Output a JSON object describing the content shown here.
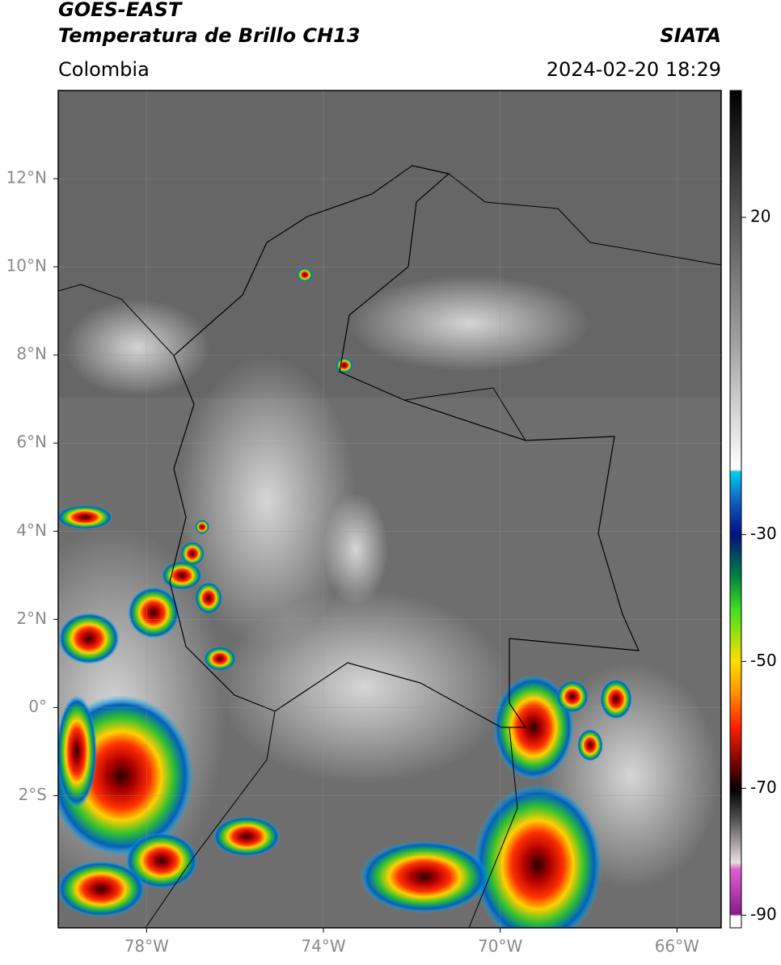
{
  "header": {
    "satellite": "GOES-EAST",
    "product": "Temperatura de Brillo CH13",
    "organization": "SIATA",
    "region": "Colombia",
    "datetime": "2024-02-20 18:29"
  },
  "map": {
    "xlim": [
      -80,
      -65
    ],
    "ylim": [
      -5,
      14
    ],
    "xticks": [
      {
        "value": -78,
        "label": "78°W"
      },
      {
        "value": -74,
        "label": "74°W"
      },
      {
        "value": -70,
        "label": "70°W"
      },
      {
        "value": -66,
        "label": "66°W"
      }
    ],
    "yticks": [
      {
        "value": 12,
        "label": "12°N"
      },
      {
        "value": 10,
        "label": "10°N"
      },
      {
        "value": 8,
        "label": "8°N"
      },
      {
        "value": 6,
        "label": "6°N"
      },
      {
        "value": 4,
        "label": "4°N"
      },
      {
        "value": 2,
        "label": "2°N"
      },
      {
        "value": 0,
        "label": "0°"
      },
      {
        "value": -2,
        "label": "2°S"
      }
    ],
    "grid": true
  },
  "colorbar": {
    "lim": [
      -92,
      40
    ],
    "ticks": [
      20,
      -30,
      -50,
      -70,
      -90
    ]
  }
}
